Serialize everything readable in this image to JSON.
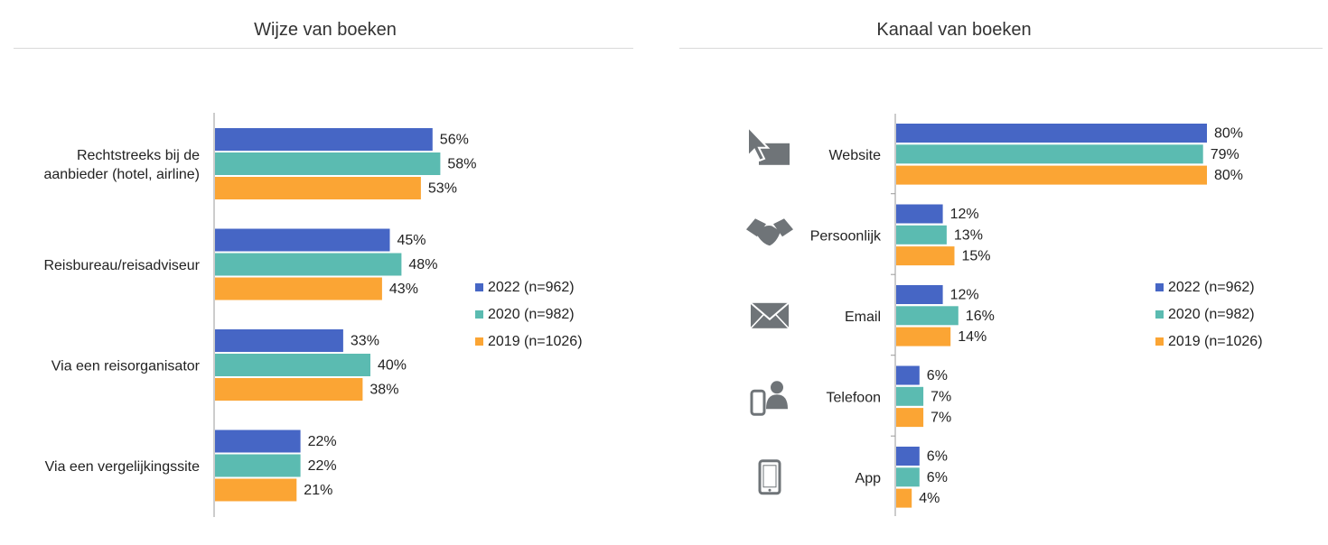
{
  "colors": {
    "2022": "#4666c5",
    "2020": "#5bbbb1",
    "2019": "#fba534",
    "axis": "#999999",
    "icon": "#6f7478"
  },
  "chart_data": [
    {
      "type": "bar",
      "title": "Wijze van boeken",
      "categories": [
        "Rechtstreeks bij de aanbieder (hotel, airline)",
        "Reisbureau/reisadviseur",
        "Via een reisorganisator",
        "Via een vergelijkingssite"
      ],
      "category_lines": [
        [
          "Rechtstreeks bij de",
          "aanbieder (hotel, airline)"
        ],
        [
          "Reisbureau/reisadviseur"
        ],
        [
          "Via een reisorganisator"
        ],
        [
          "Via een vergelijkingssite"
        ]
      ],
      "series": [
        {
          "name": "2022 (n=962)",
          "values": [
            56,
            45,
            33,
            22
          ]
        },
        {
          "name": "2020 (n=982)",
          "values": [
            58,
            48,
            40,
            22
          ]
        },
        {
          "name": "2019 (n=1026)",
          "values": [
            53,
            43,
            38,
            21
          ]
        }
      ],
      "unit": "%",
      "legend": "right"
    },
    {
      "type": "bar",
      "title": "Kanaal van boeken",
      "categories": [
        "Website",
        "Persoonlijk",
        "Email",
        "Telefoon",
        "App"
      ],
      "category_icons": [
        "cursor-icon",
        "handshake-icon",
        "envelope-icon",
        "phone-person-icon",
        "smartphone-icon"
      ],
      "series": [
        {
          "name": "2022 (n=962)",
          "values": [
            80,
            12,
            12,
            6,
            6
          ]
        },
        {
          "name": "2020 (n=982)",
          "values": [
            79,
            13,
            16,
            7,
            6
          ]
        },
        {
          "name": "2019 (n=1026)",
          "values": [
            80,
            15,
            14,
            7,
            4
          ]
        }
      ],
      "unit": "%",
      "legend": "right"
    }
  ]
}
